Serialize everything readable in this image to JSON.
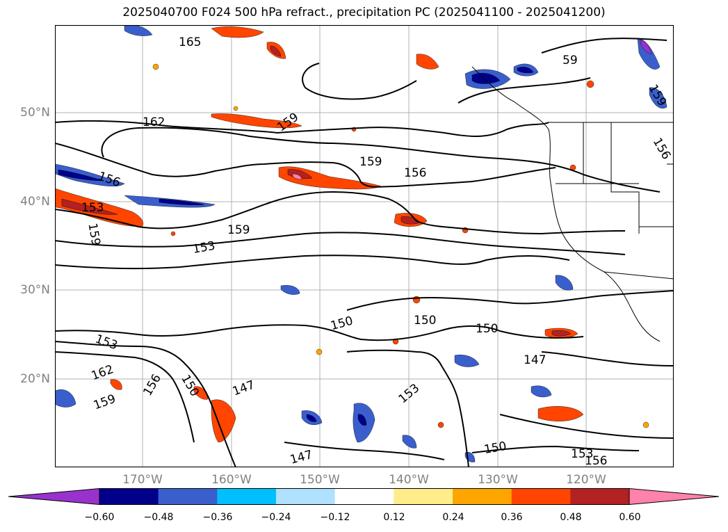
{
  "title": "2025040700 F024 500 hPa refract., precipitation PC (2025041100 - 2025041200)",
  "latitude_labels": [
    "50°N",
    "40°N",
    "30°N",
    "20°N"
  ],
  "longitude_labels": [
    "170°W",
    "160°W",
    "150°W",
    "140°W",
    "130°W",
    "120°W"
  ],
  "colorbar": {
    "ticks": [
      "−0.60",
      "−0.48",
      "−0.36",
      "−0.24",
      "−0.12",
      "0.12",
      "0.24",
      "0.36",
      "0.48",
      "0.60"
    ],
    "colors": [
      "#9932cc",
      "#00008b",
      "#3a5fcd",
      "#00bfff",
      "#b0e2ff",
      "#ffffff",
      "#ffec8b",
      "#ffa500",
      "#ff4500",
      "#b22222",
      "#ff82ab"
    ]
  },
  "contour_labels": [
    {
      "text": "165"
    },
    {
      "text": "162"
    },
    {
      "text": "159"
    },
    {
      "text": "159"
    },
    {
      "text": "156"
    },
    {
      "text": "156"
    },
    {
      "text": "153"
    },
    {
      "text": "159"
    },
    {
      "text": "159"
    },
    {
      "text": "153"
    },
    {
      "text": "159"
    },
    {
      "text": "156"
    },
    {
      "text": "150"
    },
    {
      "text": "150"
    },
    {
      "text": "150"
    },
    {
      "text": "147"
    },
    {
      "text": "153"
    },
    {
      "text": "162"
    },
    {
      "text": "156"
    },
    {
      "text": "150"
    },
    {
      "text": "159"
    },
    {
      "text": "147"
    },
    {
      "text": "153"
    },
    {
      "text": "147"
    },
    {
      "text": "150"
    },
    {
      "text": "153"
    },
    {
      "text": "156"
    },
    {
      "text": "59"
    },
    {
      "text": "156"
    },
    {
      "text": "159"
    }
  ]
}
